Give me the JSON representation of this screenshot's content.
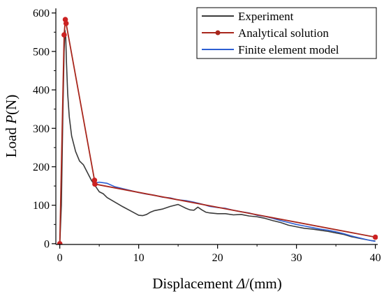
{
  "chart_data": {
    "type": "line",
    "title": "",
    "xlabel": {
      "prefix": "Displacement ",
      "symbol": "Δ",
      "suffix": "/(mm)"
    },
    "ylabel": {
      "prefix": "Load ",
      "symbol": "P",
      "suffix": "(N)"
    },
    "xlim": [
      -0.5,
      40.3
    ],
    "ylim": [
      -2,
      612
    ],
    "xticks": [
      0,
      10,
      20,
      30,
      40
    ],
    "yticks": [
      0,
      100,
      200,
      300,
      400,
      500,
      600
    ],
    "grid": false,
    "legend_position": "top-right",
    "series": [
      {
        "name": "Experiment",
        "color": "#3a3a3a",
        "marker": "none",
        "x": [
          0,
          0.2,
          0.4,
          0.55,
          0.65,
          0.75,
          0.85,
          1.0,
          1.2,
          1.5,
          2.0,
          2.5,
          3.0,
          3.5,
          4.0,
          4.5,
          5.0,
          5.5,
          6.0,
          7.0,
          8.0,
          9.0,
          10.0,
          10.5,
          11.0,
          11.5,
          12.0,
          12.5,
          13.0,
          14.0,
          15.0,
          15.5,
          16.0,
          16.5,
          17.0,
          17.5,
          18.0,
          18.5,
          19.0,
          20.0,
          21.0,
          22.0,
          23.0,
          24.0,
          25.0,
          26.0,
          27.0,
          28.0,
          29.0,
          30.0,
          31.0,
          32.0,
          33.0,
          34.0,
          35.0,
          36.0,
          37.0,
          38.0,
          39.0,
          39.5,
          40.0
        ],
        "y": [
          0,
          100,
          350,
          500,
          555,
          540,
          470,
          390,
          330,
          280,
          240,
          215,
          205,
          185,
          165,
          150,
          135,
          130,
          120,
          108,
          96,
          85,
          74,
          73,
          76,
          82,
          86,
          88,
          90,
          97,
          102,
          97,
          92,
          88,
          87,
          95,
          88,
          82,
          80,
          78,
          78,
          75,
          76,
          72,
          70,
          66,
          60,
          55,
          48,
          44,
          40,
          38,
          35,
          32,
          28,
          24,
          18,
          14,
          10,
          8,
          7
        ]
      },
      {
        "name": "Analytical solution",
        "color": "#a8261c",
        "marker_color": "#cc2222",
        "marker": "circle",
        "x": [
          0,
          0.55,
          0.7,
          0.8,
          4.4,
          4.45,
          40.0
        ],
        "y": [
          0,
          543,
          583,
          573,
          165,
          155,
          17
        ]
      },
      {
        "name": "Finite element model",
        "color": "#2d5fd3",
        "marker": "none",
        "x": [
          4.5,
          5,
          6,
          7,
          8,
          9,
          10,
          11,
          12,
          13,
          14,
          15,
          16,
          17,
          18,
          19,
          20,
          21,
          22,
          23,
          24,
          25,
          26,
          27,
          28,
          29,
          30,
          31,
          32,
          33,
          34,
          35,
          36,
          37,
          38,
          39,
          40
        ],
        "y": [
          158,
          160,
          157,
          148,
          143,
          138,
          133,
          129,
          126,
          121,
          119,
          114,
          112,
          108,
          103,
          97,
          94,
          92,
          87,
          83,
          80,
          74,
          71,
          66,
          60,
          55,
          50,
          46,
          42,
          38,
          35,
          31,
          26,
          20,
          15,
          10,
          6
        ]
      }
    ]
  }
}
